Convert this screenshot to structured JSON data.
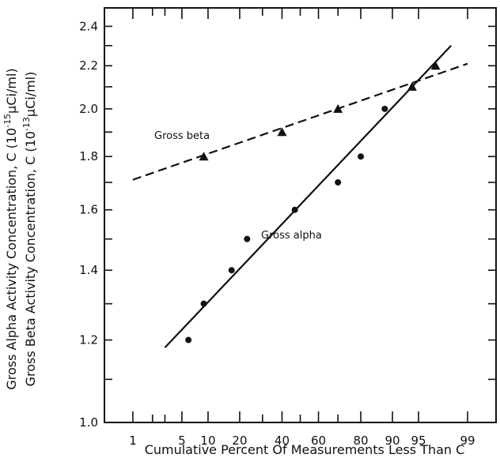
{
  "chart_data": {
    "type": "scatter",
    "title": "",
    "xlabel": "Cumulative Percent Of Measurements Less Than C",
    "ylabel_lines": [
      "Gross Alpha Activity Concentration, C (10",
      "-15",
      "μCi/ml)",
      "Gross Beta Activity Concentration, C (10",
      "-13",
      "μCi/ml)"
    ],
    "x_scale": "probability",
    "y_scale": "log",
    "xlim": [
      1,
      99
    ],
    "ylim": [
      1.0,
      2.5
    ],
    "x_ticks": [
      {
        "value": 1,
        "label": "1"
      },
      {
        "value": 5,
        "label": "5"
      },
      {
        "value": 10,
        "label": "10"
      },
      {
        "value": 20,
        "label": "20"
      },
      {
        "value": 40,
        "label": "40"
      },
      {
        "value": 60,
        "label": "60"
      },
      {
        "value": 80,
        "label": "80"
      },
      {
        "value": 90,
        "label": "90"
      },
      {
        "value": 95,
        "label": "95"
      },
      {
        "value": 99,
        "label": "99"
      }
    ],
    "x_minor_ticks": [
      2,
      3,
      30,
      50,
      70
    ],
    "y_ticks": [
      {
        "value": 1.0,
        "label": "1.0"
      },
      {
        "value": 1.2,
        "label": "1.2"
      },
      {
        "value": 1.4,
        "label": "1.4"
      },
      {
        "value": 1.6,
        "label": "1.6"
      },
      {
        "value": 1.8,
        "label": "1.8"
      },
      {
        "value": 2.0,
        "label": "2.0"
      },
      {
        "value": 2.2,
        "label": "2.2"
      },
      {
        "value": 2.4,
        "label": "2.4"
      }
    ],
    "y_minor_ticks": [
      1.1,
      1.3,
      1.5,
      1.7,
      1.9,
      2.1,
      2.3
    ],
    "grid": false,
    "series": [
      {
        "name": "Gross beta",
        "marker": "triangle",
        "points": [
          {
            "x": 9,
            "y": 1.8
          },
          {
            "x": 40,
            "y": 1.9
          },
          {
            "x": 70,
            "y": 2.0
          },
          {
            "x": 94,
            "y": 2.1
          },
          {
            "x": 97,
            "y": 2.2
          }
        ],
        "fit": {
          "style": "dashed",
          "from": {
            "x": 1,
            "y": 1.71
          },
          "to": {
            "x": 99,
            "y": 2.21
          }
        }
      },
      {
        "name": "Gross alpha",
        "marker": "circle",
        "points": [
          {
            "x": 6,
            "y": 1.2
          },
          {
            "x": 9,
            "y": 1.3
          },
          {
            "x": 17,
            "y": 1.4
          },
          {
            "x": 23,
            "y": 1.5
          },
          {
            "x": 47,
            "y": 1.6
          },
          {
            "x": 70,
            "y": 1.7
          },
          {
            "x": 80,
            "y": 1.8
          },
          {
            "x": 88,
            "y": 2.0
          }
        ],
        "fit": {
          "style": "solid",
          "from": {
            "x": 3,
            "y": 1.18
          },
          "to": {
            "x": 98.2,
            "y": 2.3
          }
        }
      }
    ]
  }
}
